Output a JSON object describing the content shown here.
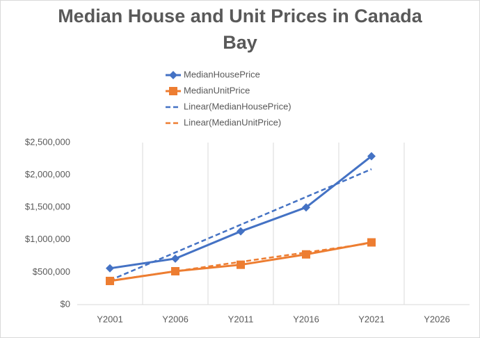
{
  "chart_data": {
    "type": "line",
    "title": "Median House and Unit Prices in Canada Bay",
    "categories": [
      "Y2001",
      "Y2006",
      "Y2011",
      "Y2016",
      "Y2021",
      "Y2026"
    ],
    "series": [
      {
        "name": "MedianHousePrice",
        "color": "#4472c4",
        "marker": "diamond",
        "values": [
          560000,
          710000,
          1130000,
          1500000,
          2290000,
          null
        ]
      },
      {
        "name": "MedianUnitPrice",
        "color": "#ed7d31",
        "marker": "square",
        "values": [
          365000,
          515000,
          615000,
          775000,
          960000,
          null
        ]
      },
      {
        "name": "Linear(MedianHousePrice)",
        "color": "#4472c4",
        "dashed": true,
        "values": [
          375000,
          804000,
          1233000,
          1661000,
          2090000,
          null
        ]
      },
      {
        "name": "Linear(MedianUnitPrice)",
        "color": "#ed7d31",
        "dashed": true,
        "values": [
          370000,
          515000,
          660000,
          805000,
          950000,
          null
        ]
      }
    ],
    "ylim": [
      0,
      2500000
    ],
    "yticks": [
      {
        "value": 0,
        "label": "$0"
      },
      {
        "value": 500000,
        "label": "$500,000"
      },
      {
        "value": 1000000,
        "label": "$1,000,000"
      },
      {
        "value": 1500000,
        "label": "$1,500,000"
      },
      {
        "value": 2000000,
        "label": "$2,000,000"
      },
      {
        "value": 2500000,
        "label": "$2,500,000"
      }
    ],
    "legend": "top"
  }
}
